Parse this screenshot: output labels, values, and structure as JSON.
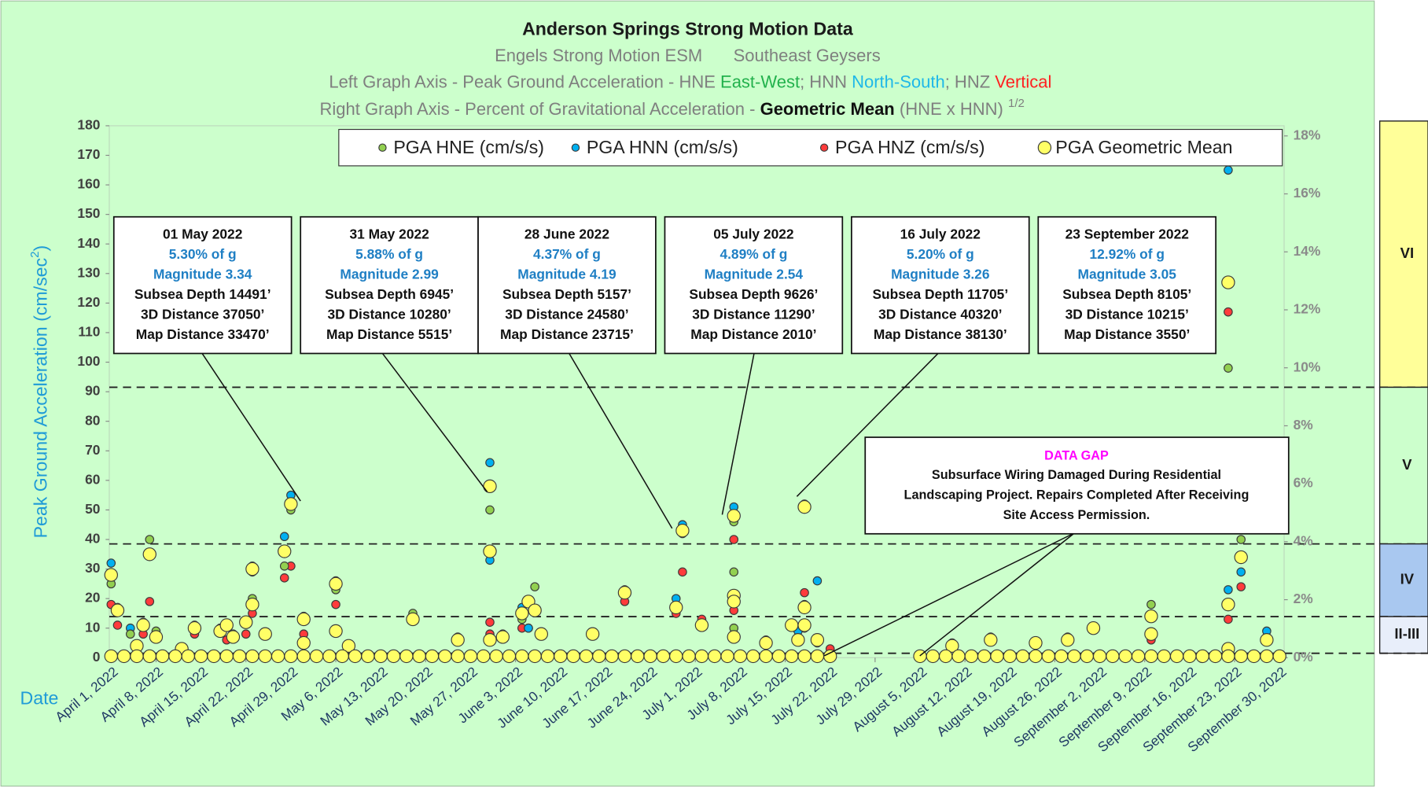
{
  "chart_data": {
    "type": "scatter",
    "title": "Anderson Springs Strong Motion Data",
    "subtitle": [
      "Engels Strong Motion ESM",
      "Southeast Geysers"
    ],
    "left_axis_note": [
      "Left Graph Axis - Peak Ground Acceleration - HNE ",
      "East-West",
      "; HNN ",
      "North-South",
      "; HNZ ",
      "Vertical"
    ],
    "right_axis_note": [
      "Right Graph Axis - Percent of Gravitational Acceleration - ",
      "Geometric Mean",
      " (HNE x HNN) ",
      "1/2"
    ],
    "ylabel": [
      "Peak Ground Acceleration (cm/sec",
      "2",
      ")"
    ],
    "xlabel": "Date",
    "xlim": [
      "2022-04-01",
      "2022-09-30"
    ],
    "xticks": [
      {
        "value": "2022-04-01",
        "label": "April 1, 2022"
      },
      {
        "value": "2022-04-08",
        "label": "April 8, 2022"
      },
      {
        "value": "2022-04-15",
        "label": "April 15, 2022"
      },
      {
        "value": "2022-04-22",
        "label": "April 22, 2022"
      },
      {
        "value": "2022-04-29",
        "label": "April 29, 2022"
      },
      {
        "value": "2022-05-06",
        "label": "May 6, 2022"
      },
      {
        "value": "2022-05-13",
        "label": "May 13, 2022"
      },
      {
        "value": "2022-05-20",
        "label": "May 20, 2022"
      },
      {
        "value": "2022-05-27",
        "label": "May 27, 2022"
      },
      {
        "value": "2022-06-03",
        "label": "June 3, 2022"
      },
      {
        "value": "2022-06-10",
        "label": "June 10, 2022"
      },
      {
        "value": "2022-06-17",
        "label": "June 17, 2022"
      },
      {
        "value": "2022-06-24",
        "label": "June 24, 2022"
      },
      {
        "value": "2022-07-01",
        "label": "July 1, 2022"
      },
      {
        "value": "2022-07-08",
        "label": "July 8, 2022"
      },
      {
        "value": "2022-07-15",
        "label": "July 15, 2022"
      },
      {
        "value": "2022-07-22",
        "label": "July 22, 2022"
      },
      {
        "value": "2022-07-29",
        "label": "July 29, 2022"
      },
      {
        "value": "2022-08-05",
        "label": "August 5, 2022"
      },
      {
        "value": "2022-08-12",
        "label": "August 12, 2022"
      },
      {
        "value": "2022-08-19",
        "label": "August 19, 2022"
      },
      {
        "value": "2022-08-26",
        "label": "August 26, 2022"
      },
      {
        "value": "2022-09-02",
        "label": "September 2, 2022"
      },
      {
        "value": "2022-09-09",
        "label": "September 9, 2022"
      },
      {
        "value": "2022-09-16",
        "label": "September 16, 2022"
      },
      {
        "value": "2022-09-23",
        "label": "September 23, 2022"
      },
      {
        "value": "2022-09-30",
        "label": "September 30, 2022"
      }
    ],
    "ylim": [
      0,
      180
    ],
    "yticks": [
      0,
      10,
      20,
      30,
      40,
      50,
      60,
      70,
      80,
      90,
      100,
      110,
      120,
      130,
      140,
      150,
      160,
      170,
      180
    ],
    "y2lim": [
      0,
      18.35
    ],
    "y2ticks": [
      {
        "value": 0,
        "label": "0%"
      },
      {
        "value": 2,
        "label": "2%"
      },
      {
        "value": 4,
        "label": "4%"
      },
      {
        "value": 6,
        "label": "6%"
      },
      {
        "value": 8,
        "label": "8%"
      },
      {
        "value": 10,
        "label": "10%"
      },
      {
        "value": 12,
        "label": "12%"
      },
      {
        "value": 14,
        "label": "14%"
      },
      {
        "value": 16,
        "label": "16%"
      },
      {
        "value": 18,
        "label": "18%"
      }
    ],
    "grid": false,
    "legend": "top",
    "series": [
      {
        "name": "PGA HNE (cm/s/s)",
        "color": "#92d050",
        "x": [
          "2022-04-01",
          "2022-04-02",
          "2022-04-04",
          "2022-04-06",
          "2022-04-07",
          "2022-04-08",
          "2022-04-14",
          "2022-04-18",
          "2022-04-20",
          "2022-04-23",
          "2022-04-23",
          "2022-04-25",
          "2022-04-28",
          "2022-04-29",
          "2022-05-01",
          "2022-05-06",
          "2022-05-18",
          "2022-05-25",
          "2022-05-30",
          "2022-06-04",
          "2022-06-06",
          "2022-06-07",
          "2022-06-15",
          "2022-06-20",
          "2022-06-29",
          "2022-07-07",
          "2022-07-07",
          "2022-07-07",
          "2022-07-12",
          "2022-07-18",
          "2022-07-18",
          "2022-08-10",
          "2022-08-16",
          "2022-09-01",
          "2022-09-10",
          "2022-09-22",
          "2022-09-24"
        ],
        "values": [
          25,
          16,
          8,
          12,
          40,
          9,
          11,
          10,
          8,
          31,
          20,
          8,
          31,
          50,
          14,
          23,
          15,
          6,
          50,
          13,
          24,
          8,
          8,
          23,
          42,
          46,
          29,
          10,
          6,
          51,
          18,
          5,
          7,
          10,
          18,
          98,
          40
        ]
      },
      {
        "name": "PGA HNN (cm/s/s)",
        "color": "#00b0f0",
        "x": [
          "2022-04-01",
          "2022-04-02",
          "2022-04-04",
          "2022-04-19",
          "2022-04-23",
          "2022-04-28",
          "2022-04-29",
          "2022-05-06",
          "2022-05-25",
          "2022-05-30",
          "2022-05-30",
          "2022-06-01",
          "2022-06-04",
          "2022-06-05",
          "2022-06-28",
          "2022-06-29",
          "2022-07-07",
          "2022-07-07",
          "2022-07-17",
          "2022-07-18",
          "2022-07-20",
          "2022-08-28",
          "2022-09-10",
          "2022-09-22",
          "2022-09-22",
          "2022-09-24",
          "2022-09-28"
        ],
        "values": [
          32,
          17,
          10,
          11,
          29,
          41,
          55,
          26,
          7,
          66,
          33,
          8,
          17,
          10,
          20,
          45,
          51,
          20,
          9,
          52,
          26,
          7,
          8,
          165,
          23,
          29,
          9
        ]
      },
      {
        "name": "PGA HNZ (cm/s/s)",
        "color": "#ff3b3b",
        "x": [
          "2022-04-01",
          "2022-04-02",
          "2022-04-06",
          "2022-04-07",
          "2022-04-14",
          "2022-04-19",
          "2022-04-22",
          "2022-04-23",
          "2022-04-28",
          "2022-04-29",
          "2022-05-01",
          "2022-05-06",
          "2022-05-30",
          "2022-05-30",
          "2022-05-30",
          "2022-06-04",
          "2022-06-05",
          "2022-06-20",
          "2022-06-28",
          "2022-06-29",
          "2022-07-02",
          "2022-07-07",
          "2022-07-07",
          "2022-07-18",
          "2022-07-18",
          "2022-07-20",
          "2022-07-22",
          "2022-09-10",
          "2022-09-22",
          "2022-09-22",
          "2022-09-24"
        ],
        "values": [
          18,
          11,
          8,
          19,
          8,
          6,
          8,
          15,
          27,
          31,
          8,
          18,
          36,
          12,
          8,
          10,
          10,
          19,
          15,
          29,
          13,
          40,
          16,
          22,
          10,
          5,
          3,
          6,
          117,
          13,
          24
        ]
      },
      {
        "name": "PGA Geometric Mean",
        "color": "#ffff66",
        "x": [
          "2022-04-01",
          "2022-04-02",
          "2022-04-05",
          "2022-04-06",
          "2022-04-07",
          "2022-04-08",
          "2022-04-12",
          "2022-04-14",
          "2022-04-18",
          "2022-04-19",
          "2022-04-20",
          "2022-04-22",
          "2022-04-23",
          "2022-04-23",
          "2022-04-25",
          "2022-04-28",
          "2022-04-29",
          "2022-05-01",
          "2022-05-01",
          "2022-05-06",
          "2022-05-06",
          "2022-05-08",
          "2022-05-18",
          "2022-05-25",
          "2022-05-30",
          "2022-05-30",
          "2022-05-30",
          "2022-06-01",
          "2022-06-04",
          "2022-06-05",
          "2022-06-06",
          "2022-06-07",
          "2022-06-15",
          "2022-06-20",
          "2022-06-28",
          "2022-06-29",
          "2022-07-02",
          "2022-07-07",
          "2022-07-07",
          "2022-07-07",
          "2022-07-07",
          "2022-07-12",
          "2022-07-16",
          "2022-07-17",
          "2022-07-18",
          "2022-07-18",
          "2022-07-18",
          "2022-07-20",
          "2022-08-10",
          "2022-08-16",
          "2022-08-23",
          "2022-08-28",
          "2022-09-01",
          "2022-09-10",
          "2022-09-10",
          "2022-09-22",
          "2022-09-22",
          "2022-09-22",
          "2022-09-24",
          "2022-09-28",
          "2022-04-01",
          "2022-04-03",
          "2022-04-05",
          "2022-04-07",
          "2022-04-09",
          "2022-04-11",
          "2022-04-13",
          "2022-04-15",
          "2022-04-17",
          "2022-04-19",
          "2022-04-21",
          "2022-04-23",
          "2022-04-25",
          "2022-04-27",
          "2022-04-29",
          "2022-05-01",
          "2022-05-03",
          "2022-05-05",
          "2022-05-07",
          "2022-05-09",
          "2022-05-11",
          "2022-05-13",
          "2022-05-15",
          "2022-05-17",
          "2022-05-19",
          "2022-05-21",
          "2022-05-23",
          "2022-05-25",
          "2022-05-27",
          "2022-05-29",
          "2022-05-31",
          "2022-06-02",
          "2022-06-04",
          "2022-06-06",
          "2022-06-08",
          "2022-06-10",
          "2022-06-12",
          "2022-06-14",
          "2022-06-16",
          "2022-06-18",
          "2022-06-20",
          "2022-06-22",
          "2022-06-24",
          "2022-06-26",
          "2022-06-28",
          "2022-06-30",
          "2022-07-02",
          "2022-07-04",
          "2022-07-06",
          "2022-07-08",
          "2022-07-10",
          "2022-07-12",
          "2022-07-14",
          "2022-07-16",
          "2022-07-18",
          "2022-07-20",
          "2022-07-22",
          "2022-08-05",
          "2022-08-07",
          "2022-08-09",
          "2022-08-11",
          "2022-08-13",
          "2022-08-15",
          "2022-08-17",
          "2022-08-19",
          "2022-08-21",
          "2022-08-23",
          "2022-08-25",
          "2022-08-27",
          "2022-08-29",
          "2022-08-31",
          "2022-09-02",
          "2022-09-04",
          "2022-09-06",
          "2022-09-08",
          "2022-09-10",
          "2022-09-12",
          "2022-09-14",
          "2022-09-16",
          "2022-09-18",
          "2022-09-20",
          "2022-09-22",
          "2022-09-24",
          "2022-09-26",
          "2022-09-28",
          "2022-09-30"
        ],
        "values": [
          28,
          16,
          4,
          11,
          35,
          7,
          3,
          10,
          9,
          11,
          7,
          12,
          30,
          18,
          8,
          36,
          52,
          13,
          5,
          25,
          9,
          4,
          13,
          6,
          58,
          36,
          6,
          7,
          15,
          19,
          16,
          8,
          8,
          22,
          17,
          43,
          11,
          48,
          21,
          19,
          7,
          5,
          11,
          6,
          51,
          17,
          11,
          6,
          4,
          6,
          5,
          6,
          10,
          14,
          8,
          127,
          18,
          3,
          34,
          6,
          0.5,
          0.5,
          0.5,
          0.5,
          0.5,
          0.5,
          0.5,
          0.5,
          0.5,
          0.5,
          0.5,
          0.5,
          0.5,
          0.5,
          0.5,
          0.5,
          0.5,
          0.5,
          0.5,
          0.5,
          0.5,
          0.5,
          0.5,
          0.5,
          0.5,
          0.5,
          0.5,
          0.5,
          0.5,
          0.5,
          0.5,
          0.5,
          0.5,
          0.5,
          0.5,
          0.5,
          0.5,
          0.5,
          0.5,
          0.5,
          0.5,
          0.5,
          0.5,
          0.5,
          0.5,
          0.5,
          0.5,
          0.5,
          0.5,
          0.5,
          0.5,
          0.5,
          0.5,
          0.5,
          0.5,
          0.5,
          0.5,
          0.5,
          0.5,
          0.5,
          0.5,
          0.5,
          0.5,
          0.5,
          0.5,
          0.5,
          0.5,
          0.5,
          0.5,
          0.5,
          0.5,
          0.5,
          0.5,
          0.5,
          0.5,
          0.5,
          0.5,
          0.5,
          0.5,
          0.5,
          0.5,
          0.5,
          0.5,
          0.5,
          0.5,
          0.5
        ]
      }
    ],
    "intensity": [
      {
        "label": "VI",
        "from": 91.5,
        "to": 181.6,
        "color": "#ffff99"
      },
      {
        "label": "V",
        "from": 38.5,
        "to": 91.5,
        "color": "#ccffcc"
      },
      {
        "label": "IV",
        "from": 13.9,
        "to": 38.5,
        "color": "#a9c8f0"
      },
      {
        "label": "II-III",
        "from": 1.5,
        "to": 13.9,
        "color": "#e8eefa"
      }
    ],
    "callouts": [
      {
        "date": "01 May 2022",
        "percent": "5.30% of g",
        "magnitude": "Magnitude 3.34",
        "depth": "Subsea Depth 14491’",
        "distance": "3D Distance 37050’",
        "map": "Map Distance 33470’"
      },
      {
        "date": "31 May 2022",
        "percent": "5.88% of g",
        "magnitude": "Magnitude 2.99",
        "depth": "Subsea Depth 6945’",
        "distance": "3D Distance 10280’",
        "map": "Map Distance 5515’"
      },
      {
        "date": "28 June 2022",
        "percent": "4.37% of g",
        "magnitude": "Magnitude 4.19",
        "depth": "Subsea Depth 5157’",
        "distance": "3D Distance 24580’",
        "map": "Map Distance 23715’"
      },
      {
        "date": "05 July 2022",
        "percent": "4.89% of g",
        "magnitude": "Magnitude 2.54",
        "depth": "Subsea Depth 9626’",
        "distance": "3D Distance 11290’",
        "map": "Map Distance 2010’"
      },
      {
        "date": "16 July 2022",
        "percent": "5.20% of g",
        "magnitude": "Magnitude 3.26",
        "depth": "Subsea Depth 11705’",
        "distance": "3D Distance 40320’",
        "map": "Map Distance 38130’"
      },
      {
        "date": "23 September 2022",
        "percent": "12.92% of g",
        "magnitude": "Magnitude 3.05",
        "depth": "Subsea Depth 8105’",
        "distance": "3D Distance 10215’",
        "map": "Map Distance 3550’"
      }
    ],
    "gap_note": {
      "title": "DATA GAP",
      "lines": [
        "Subsurface Wiring Damaged During Residential",
        "Landscaping Project. Repairs Completed After Receiving",
        "Site Access Permission."
      ]
    }
  }
}
